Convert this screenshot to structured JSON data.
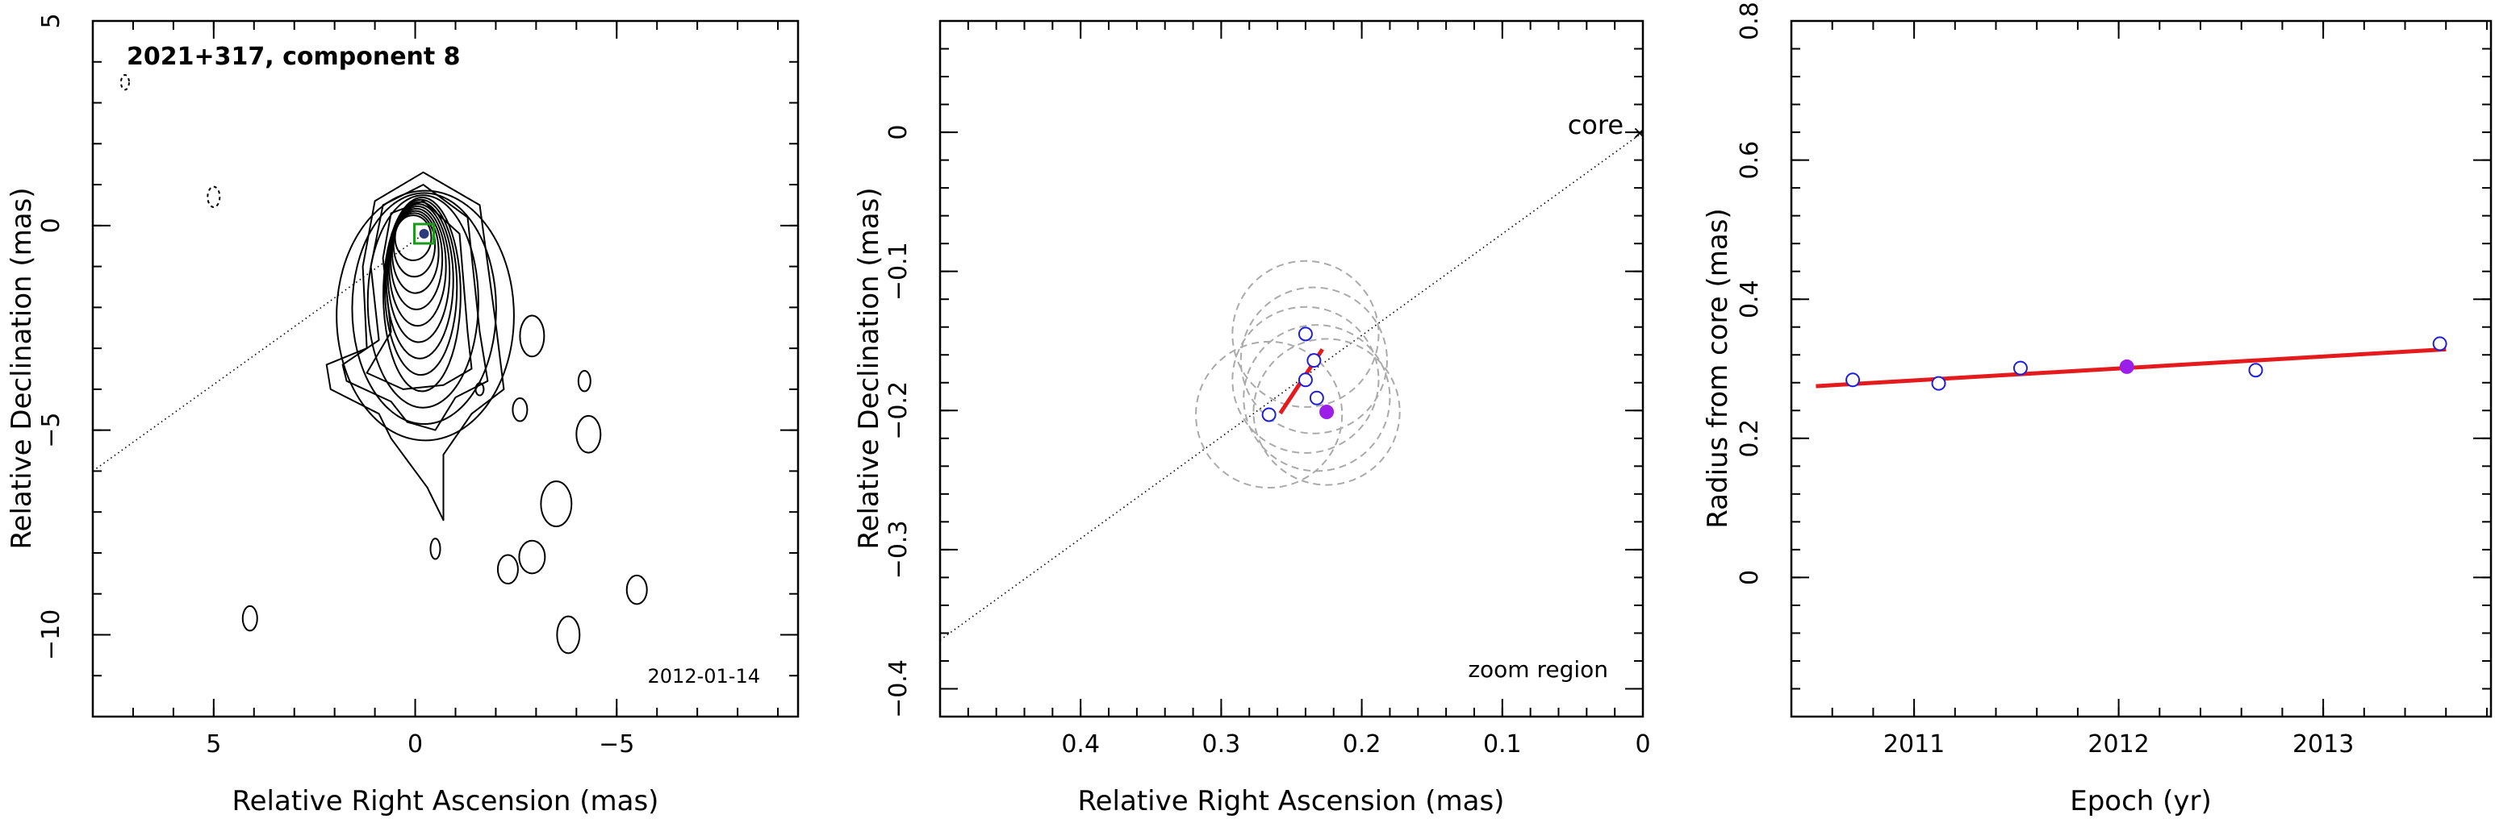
{
  "chart_data": [
    {
      "type": "scatter",
      "title": "2021+317, component 8",
      "annotation": "2012-01-14",
      "xlabel": "Relative Right Ascension (mas)",
      "ylabel": "Relative Declination (mas)",
      "xlim": [
        8,
        -9.5
      ],
      "ylim": [
        -12,
        5
      ],
      "xticks": [
        5,
        0,
        -5
      ],
      "yticks": [
        5,
        0,
        -5,
        -10
      ],
      "xtick_labels": [
        "5",
        "0",
        "−5"
      ],
      "ytick_labels": [
        "5",
        "0",
        "−5",
        "−10"
      ],
      "component": {
        "x": -0.22,
        "y": -0.2
      },
      "contours": "nested contour levels of the jet",
      "colors": {
        "component_box": "#1a9a1a",
        "component_dot": "#2a3a7a"
      }
    },
    {
      "type": "scatter",
      "annotation": "zoom region",
      "core_label": "core",
      "xlabel": "Relative Right Ascension (mas)",
      "ylabel": "Relative Declination (mas)",
      "xlim": [
        0.5,
        0.0
      ],
      "ylim": [
        -0.42,
        0.08
      ],
      "xticks": [
        0.4,
        0.3,
        0.2,
        0.1,
        0
      ],
      "yticks": [
        0,
        -0.1,
        -0.2,
        -0.3,
        -0.4
      ],
      "xtick_labels": [
        "0.4",
        "0.3",
        "0.2",
        "0.1",
        "0"
      ],
      "ytick_labels": [
        "0",
        "−0.1",
        "−0.2",
        "−0.3",
        "−0.4"
      ],
      "points": [
        {
          "x": 0.266,
          "y": -0.203
        },
        {
          "x": 0.24,
          "y": -0.145
        },
        {
          "x": 0.234,
          "y": -0.164
        },
        {
          "x": 0.24,
          "y": -0.178
        },
        {
          "x": 0.232,
          "y": -0.191
        }
      ],
      "highlight": {
        "x": 0.225,
        "y": -0.201
      },
      "fit_line": [
        {
          "x": 0.258,
          "y": -0.202
        },
        {
          "x": 0.228,
          "y": -0.156
        }
      ],
      "circles": [
        {
          "x": 0.266,
          "y": -0.203,
          "r": 0.052
        },
        {
          "x": 0.24,
          "y": -0.145,
          "r": 0.052
        },
        {
          "x": 0.234,
          "y": -0.164,
          "r": 0.052
        },
        {
          "x": 0.24,
          "y": -0.178,
          "r": 0.052
        },
        {
          "x": 0.232,
          "y": -0.191,
          "r": 0.052
        },
        {
          "x": 0.225,
          "y": -0.201,
          "r": 0.052
        }
      ],
      "colors": {
        "points": "#1f1fd8",
        "highlight": "#9b1fe8",
        "fit": "#e41a1c",
        "circles": "#aaaaaa"
      }
    },
    {
      "type": "scatter",
      "xlabel": "Epoch (yr)",
      "ylabel": "Radius from core (mas)",
      "xlim": [
        2010.4,
        2013.82
      ],
      "ylim": [
        -0.2,
        0.8
      ],
      "xticks": [
        2011,
        2012,
        2013
      ],
      "yticks": [
        0,
        0.2,
        0.4,
        0.6,
        0.8
      ],
      "xtick_labels": [
        "2011",
        "2012",
        "2013"
      ],
      "ytick_labels": [
        "0",
        "0.2",
        "0.4",
        "0.6",
        "0.8"
      ],
      "points": [
        {
          "x": 2010.7,
          "y": 0.284
        },
        {
          "x": 2011.12,
          "y": 0.279
        },
        {
          "x": 2011.52,
          "y": 0.301
        },
        {
          "x": 2012.67,
          "y": 0.298
        },
        {
          "x": 2013.57,
          "y": 0.336
        }
      ],
      "highlight": {
        "x": 2012.04,
        "y": 0.303
      },
      "fit_line": [
        {
          "x": 2010.52,
          "y": 0.275
        },
        {
          "x": 2013.6,
          "y": 0.328
        }
      ],
      "colors": {
        "points": "#1f1fd8",
        "highlight": "#9b1fe8",
        "fit": "#e41a1c"
      }
    }
  ]
}
